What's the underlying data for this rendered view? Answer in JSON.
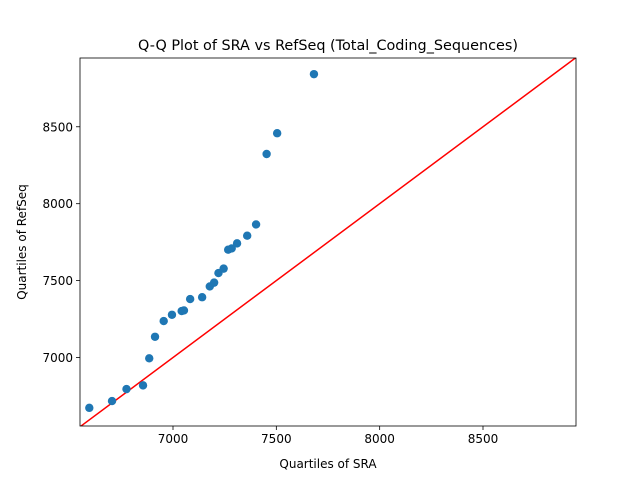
{
  "chart_data": {
    "type": "scatter",
    "title": "Q-Q Plot of SRA vs RefSeq (Total_Coding_Sequences)",
    "xlabel": "Quartiles of SRA",
    "ylabel": "Quartiles of RefSeq",
    "xlim": [
      6550,
      8950
    ],
    "ylim": [
      6555,
      8947
    ],
    "x_ticks": [
      "7000",
      "7500",
      "8000",
      "8500"
    ],
    "y_ticks": [
      "7000",
      "7500",
      "8000",
      "8500"
    ],
    "x_tick_values": [
      7000,
      7500,
      8000,
      8500
    ],
    "y_tick_values": [
      7000,
      7500,
      8000,
      8500
    ],
    "grid": false,
    "reference_line": {
      "type": "y=x",
      "color": "#ff0000"
    },
    "marker_color": "#1f77b4",
    "points": [
      {
        "x": 6595,
        "y": 6673
      },
      {
        "x": 6705,
        "y": 6717
      },
      {
        "x": 6775,
        "y": 6795
      },
      {
        "x": 6855,
        "y": 6819
      },
      {
        "x": 6885,
        "y": 6995
      },
      {
        "x": 6913,
        "y": 7135
      },
      {
        "x": 6955,
        "y": 7237
      },
      {
        "x": 6995,
        "y": 7278
      },
      {
        "x": 7042,
        "y": 7302
      },
      {
        "x": 7053,
        "y": 7306
      },
      {
        "x": 7083,
        "y": 7380
      },
      {
        "x": 7141,
        "y": 7392
      },
      {
        "x": 7178,
        "y": 7462
      },
      {
        "x": 7199,
        "y": 7487
      },
      {
        "x": 7220,
        "y": 7549
      },
      {
        "x": 7245,
        "y": 7578
      },
      {
        "x": 7267,
        "y": 7701
      },
      {
        "x": 7284,
        "y": 7709
      },
      {
        "x": 7310,
        "y": 7742
      },
      {
        "x": 7359,
        "y": 7792
      },
      {
        "x": 7402,
        "y": 7865
      },
      {
        "x": 7453,
        "y": 8323
      },
      {
        "x": 7504,
        "y": 8458
      },
      {
        "x": 7682,
        "y": 8842
      }
    ]
  }
}
